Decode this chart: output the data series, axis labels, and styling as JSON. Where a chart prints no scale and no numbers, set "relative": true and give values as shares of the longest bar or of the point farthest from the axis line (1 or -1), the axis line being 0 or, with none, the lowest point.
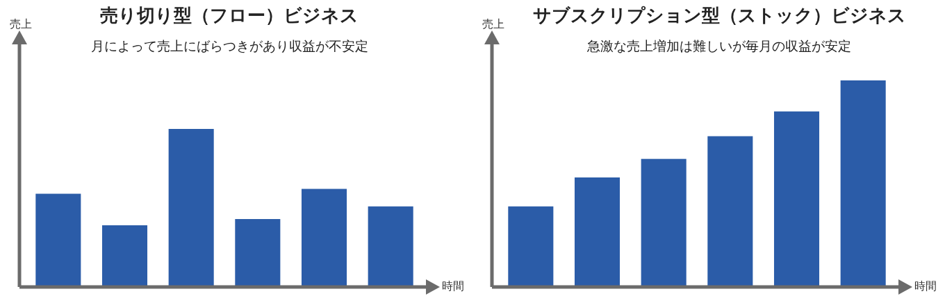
{
  "chart_data": [
    {
      "type": "bar",
      "title": "売り切り型（フロー）ビジネス",
      "subtitle": "月によって売上にばらつきがあり収益が不安定",
      "xlabel": "時間",
      "ylabel": "売上",
      "relative": true,
      "categories": [
        null,
        null,
        null,
        null,
        null,
        null
      ],
      "values": [
        0.59,
        0.39,
        1,
        0.43,
        0.62,
        0.51
      ],
      "color": "#2b5ca8"
    },
    {
      "type": "bar",
      "title": "サブスクリプション型（ストック）ビジネス",
      "subtitle": "急激な売上増加は難しいが毎月の収益が安定",
      "xlabel": "時間",
      "ylabel": "売上",
      "relative": true,
      "categories": [
        null,
        null,
        null,
        null,
        null,
        null
      ],
      "values": [
        0.39,
        0.53,
        0.62,
        0.73,
        0.85,
        1
      ],
      "color": "#2b5ca8"
    }
  ]
}
